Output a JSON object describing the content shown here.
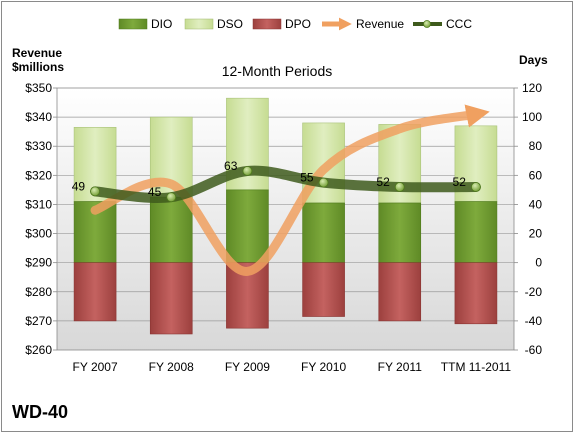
{
  "chart_data": {
    "type": "bar",
    "subtitle": "12-Month Periods",
    "company": "WD-40",
    "left_axis_title_line1": "Revenue",
    "left_axis_title_line2": "$millions",
    "right_axis_title": "Days",
    "left_axis": {
      "min": 260,
      "max": 350,
      "step": 10,
      "prefix": "$"
    },
    "right_axis": {
      "min": -60,
      "max": 120,
      "step": 20
    },
    "categories": [
      "FY 2007",
      "FY 2008",
      "FY 2009",
      "FY 2010",
      "FY 2011",
      "TTM 11-2011"
    ],
    "series": [
      {
        "name": "DIO",
        "type": "stacked-bar",
        "axis": "right",
        "color": "#6f9a30",
        "values": [
          42,
          45,
          50,
          41,
          41,
          42
        ]
      },
      {
        "name": "DSO",
        "type": "stacked-bar",
        "axis": "right",
        "color": "#d3e6a8",
        "values": [
          51,
          55,
          63,
          55,
          54,
          52
        ]
      },
      {
        "name": "DPO",
        "type": "stacked-bar-negative",
        "axis": "right",
        "color": "#b0504e",
        "values": [
          -40,
          -49,
          -45,
          -37,
          -40,
          -42
        ]
      },
      {
        "name": "Revenue",
        "type": "line",
        "axis": "left",
        "color": "#f0a060",
        "values": [
          308,
          317,
          287,
          322,
          336,
          341
        ]
      },
      {
        "name": "CCC",
        "type": "line",
        "axis": "right",
        "color": "#3e5a1c",
        "values": [
          49,
          45,
          63,
          55,
          52,
          52
        ]
      }
    ],
    "ccc_labels": [
      "49",
      "45",
      "63",
      "55",
      "52",
      "52"
    ],
    "grid": true,
    "legend_position": "top"
  }
}
